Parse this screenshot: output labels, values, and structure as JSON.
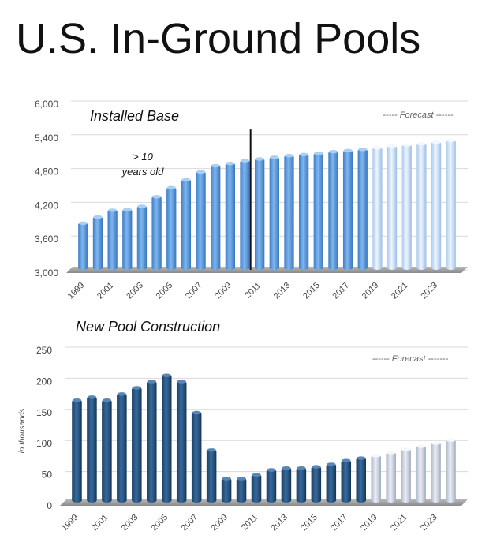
{
  "page_title": "U.S. In-Ground Pools",
  "chart_data": [
    {
      "type": "bar",
      "title": "Installed Base",
      "forecast_label": "----- Forecast ------",
      "annotation": [
        "> 10",
        "years old"
      ],
      "annotation_marker_year": 2010,
      "xlabel": "",
      "ylabel": "",
      "ylim": [
        3000,
        6000
      ],
      "yticks": [
        "3,000",
        "3,600",
        "4,200",
        "4,800",
        "5,400",
        "6,000"
      ],
      "ytick_values": [
        3000,
        3600,
        4200,
        4800,
        5400,
        6000
      ],
      "categories": [
        "1999",
        "2000",
        "2001",
        "2002",
        "2003",
        "2004",
        "2005",
        "2006",
        "2007",
        "2008",
        "2009",
        "2010",
        "2011",
        "2012",
        "2013",
        "2014",
        "2015",
        "2016",
        "2017",
        "2018",
        "2019",
        "2020",
        "2021",
        "2022",
        "2023",
        "2024"
      ],
      "x_tick_labels": [
        "1999",
        "",
        "2001",
        "",
        "2003",
        "",
        "2005",
        "",
        "2007",
        "",
        "2009",
        "",
        "2011",
        "",
        "2013",
        "",
        "2015",
        "",
        "2017",
        "",
        "2019",
        "",
        "2021",
        "",
        "2023",
        ""
      ],
      "values": [
        3900,
        4010,
        4130,
        4140,
        4200,
        4370,
        4530,
        4670,
        4810,
        4920,
        4960,
        5010,
        5040,
        5070,
        5100,
        5120,
        5140,
        5170,
        5190,
        5210,
        5240,
        5270,
        5290,
        5310,
        5340,
        5370
      ],
      "forecast_start_index": 20,
      "colors": {
        "actual": "#5a9be0",
        "forecast": "#bcd8f5"
      }
    },
    {
      "type": "bar",
      "title": "New Pool Construction",
      "forecast_label": "------ Forecast -------",
      "xlabel": "",
      "ylabel": "in thousands",
      "ylim": [
        0,
        250
      ],
      "yticks": [
        "0",
        "50",
        "100",
        "150",
        "200",
        "250"
      ],
      "ytick_values": [
        0,
        50,
        100,
        150,
        200,
        250
      ],
      "categories": [
        "1999",
        "2000",
        "2001",
        "2002",
        "2003",
        "2004",
        "2005",
        "2006",
        "2007",
        "2008",
        "2009",
        "2010",
        "2011",
        "2012",
        "2013",
        "2014",
        "2015",
        "2016",
        "2017",
        "2018",
        "2019",
        "2020",
        "2021",
        "2022",
        "2023",
        "2024"
      ],
      "x_tick_labels": [
        "1999",
        "",
        "2001",
        "",
        "2003",
        "",
        "2005",
        "",
        "2007",
        "",
        "2009",
        "",
        "2011",
        "",
        "2013",
        "",
        "2015",
        "",
        "2017",
        "",
        "2019",
        "",
        "2021",
        "",
        "2023",
        ""
      ],
      "values": [
        171,
        176,
        171,
        181,
        191,
        201,
        211,
        201,
        151,
        91,
        45,
        45,
        51,
        59,
        62,
        62,
        64,
        68,
        74,
        78,
        82,
        87,
        92,
        97,
        102,
        107
      ],
      "forecast_start_index": 20,
      "colors": {
        "actual": "#1f4e7d",
        "forecast": "#c9d1de"
      }
    }
  ]
}
